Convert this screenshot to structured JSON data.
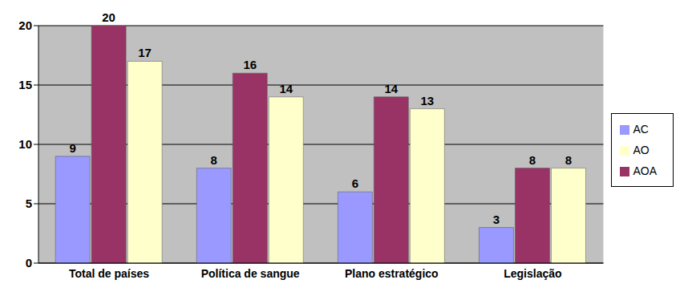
{
  "chart_data": {
    "type": "bar",
    "categories": [
      "Total de países",
      "Política de sangue",
      "Plano estratégico",
      "Legislação"
    ],
    "series": [
      {
        "name": "AC",
        "color": "#9999ff",
        "values": [
          9,
          8,
          6,
          3
        ]
      },
      {
        "name": "AOA",
        "color": "#993366",
        "values": [
          20,
          16,
          14,
          8
        ]
      },
      {
        "name": "AO",
        "color": "#ffffcc",
        "values": [
          17,
          14,
          13,
          8
        ]
      }
    ],
    "ylim": [
      0,
      20
    ],
    "yticks": [
      0,
      5,
      10,
      15,
      20
    ],
    "grid": true,
    "legend": "right",
    "data_labels": true
  }
}
